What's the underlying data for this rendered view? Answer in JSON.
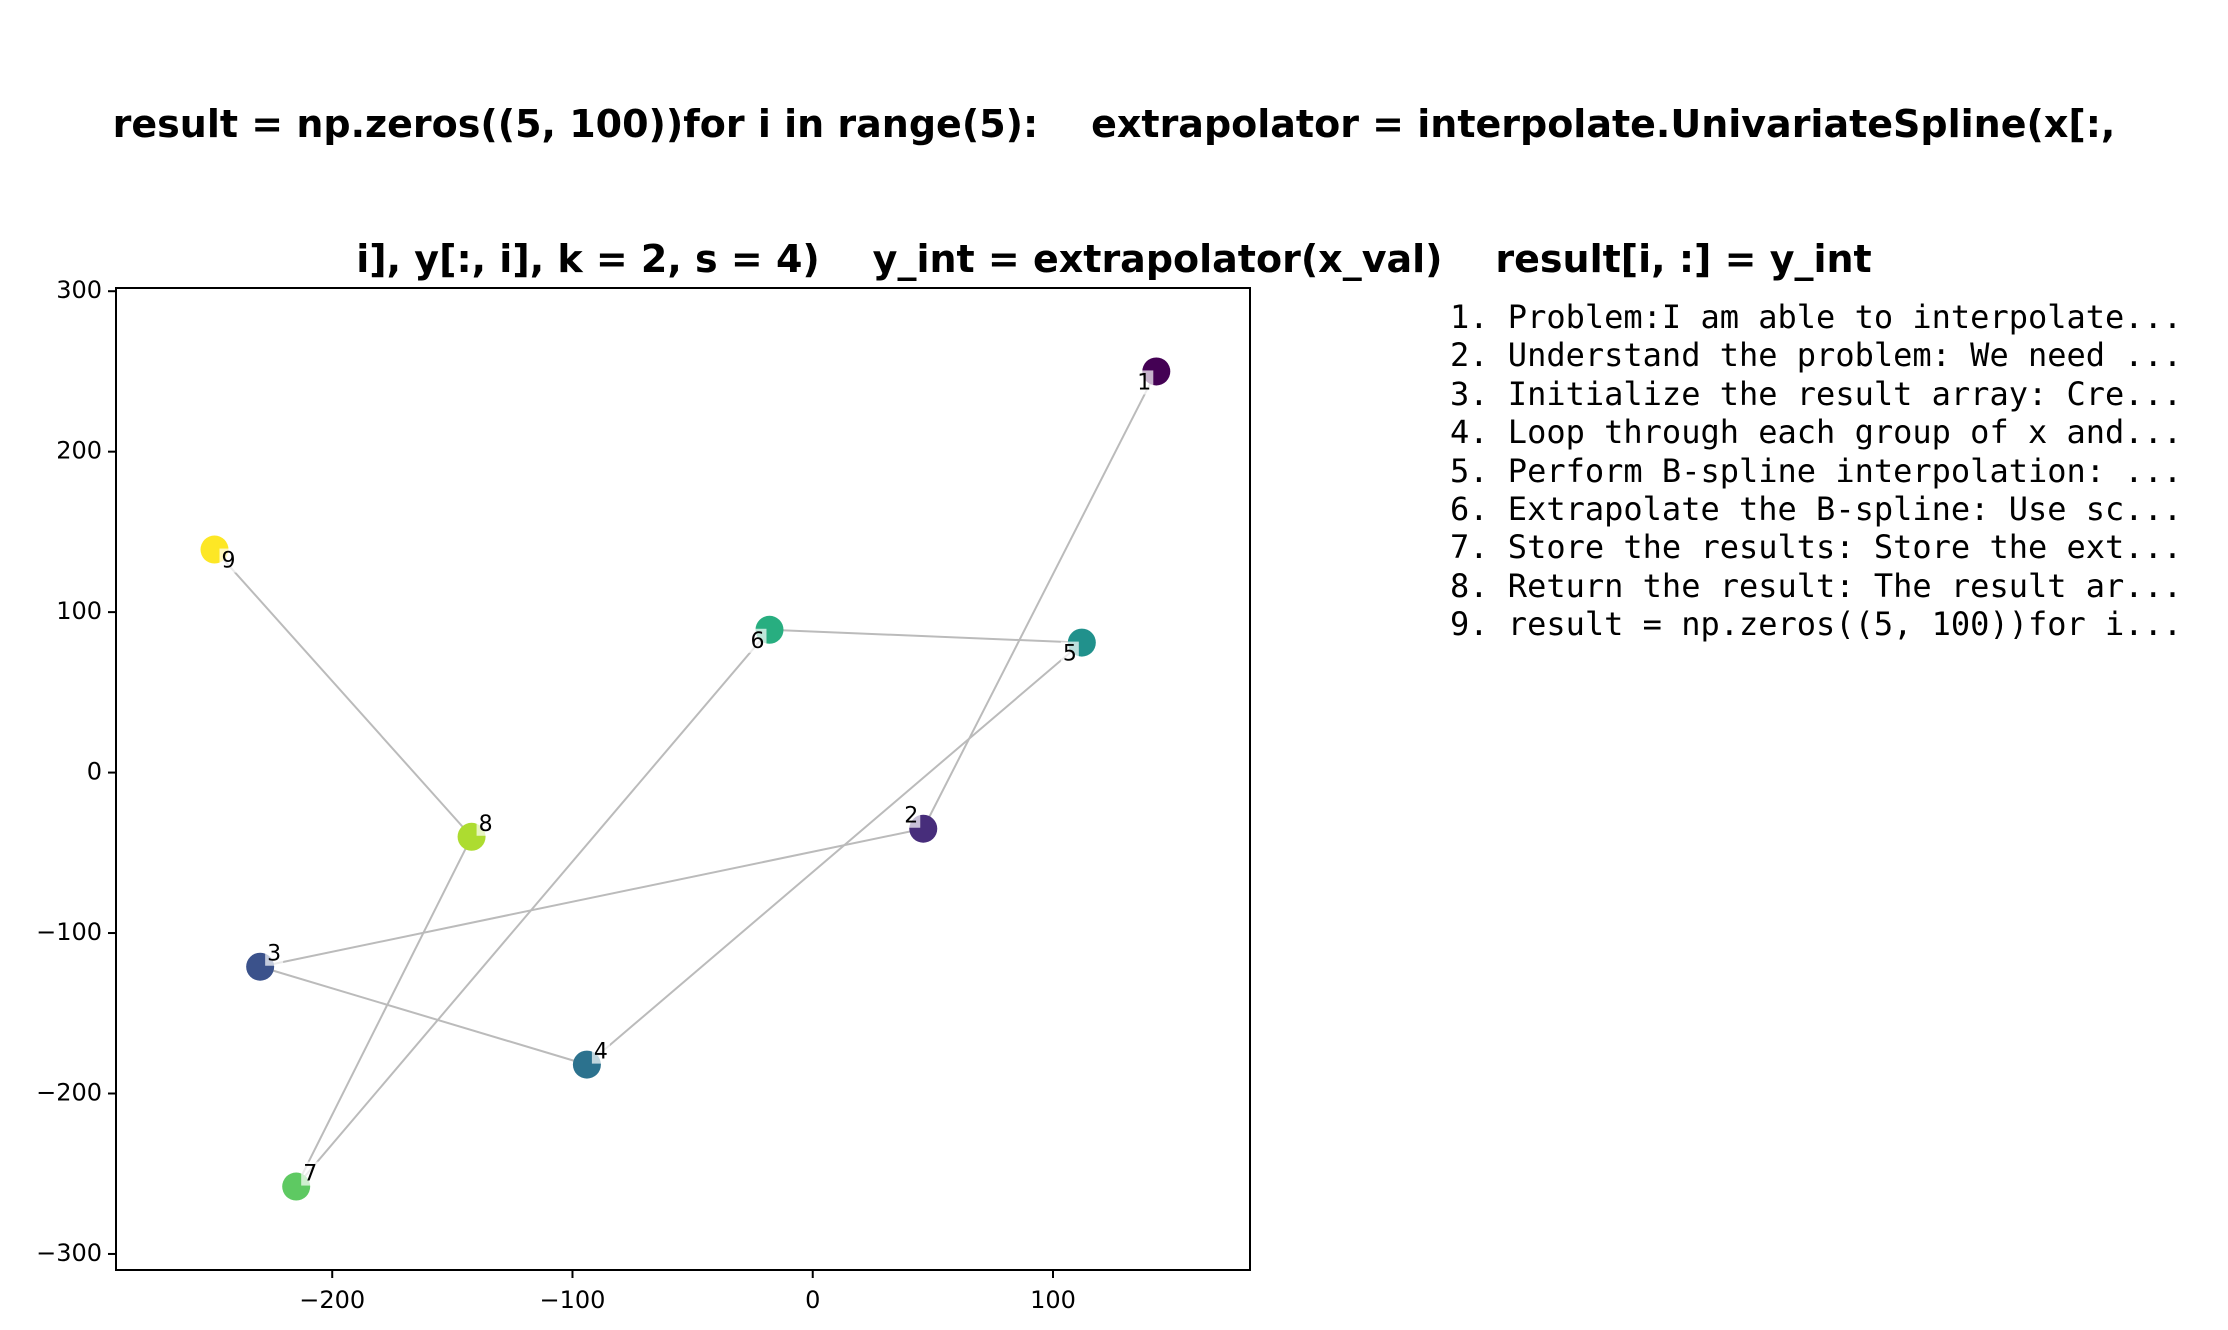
{
  "figure": {
    "title_lines": [
      "result = np.zeros((5, 100))for i in range(5):    extrapolator = interpolate.UnivariateSpline(x[:,",
      "i], y[:, i], k = 2, s = 4)    y_int = extrapolator(x_val)    result[i, :] = y_int"
    ]
  },
  "chart_data": {
    "type": "scatter",
    "title": "result = np.zeros((5, 100))for i in range(5):    extrapolator = interpolate.UnivariateSpline(x[:, i], y[:, i], k = 2, s = 4)    y_int = extrapolator(x_val)    result[i, :] = y_int",
    "xlabel": "",
    "ylabel": "",
    "xlim": [
      -290,
      182
    ],
    "ylim": [
      -310,
      302
    ],
    "xticks": [
      -200,
      -100,
      0,
      100
    ],
    "yticks": [
      -300,
      -200,
      -100,
      0,
      100,
      200,
      300
    ],
    "xtick_labels": [
      "−200",
      "−100",
      "0",
      "100"
    ],
    "ytick_labels": [
      "−300",
      "−200",
      "−100",
      "0",
      "100",
      "200",
      "300"
    ],
    "grid": false,
    "connect_in_order": true,
    "line_color": "#bbbbbb",
    "colormap": "viridis",
    "points": [
      {
        "label": "1",
        "x": 143,
        "y": 250,
        "color": "#440154"
      },
      {
        "label": "2",
        "x": 46,
        "y": -35,
        "color": "#472d7b"
      },
      {
        "label": "3",
        "x": -230,
        "y": -121,
        "color": "#3b528b"
      },
      {
        "label": "4",
        "x": -94,
        "y": -182,
        "color": "#2c728e"
      },
      {
        "label": "5",
        "x": 112,
        "y": 81,
        "color": "#21918c"
      },
      {
        "label": "6",
        "x": -18,
        "y": 89,
        "color": "#28ae80"
      },
      {
        "label": "7",
        "x": -215,
        "y": -258,
        "color": "#5ec962"
      },
      {
        "label": "8",
        "x": -142,
        "y": -40,
        "color": "#addc30"
      },
      {
        "label": "9",
        "x": -249,
        "y": 139,
        "color": "#fde725"
      }
    ],
    "annotations": [
      "1. Problem:I am able to interpolate...",
      "2. Understand the problem: We need ...",
      "3. Initialize the result array: Cre...",
      "4. Loop through each group of x and...",
      "5. Perform B-spline interpolation: ...",
      "6. Extrapolate the B-spline: Use sc...",
      "7. Store the results: Store the ext...",
      "8. Return the result: The result ar...",
      "9. result = np.zeros((5, 100))for i..."
    ]
  }
}
